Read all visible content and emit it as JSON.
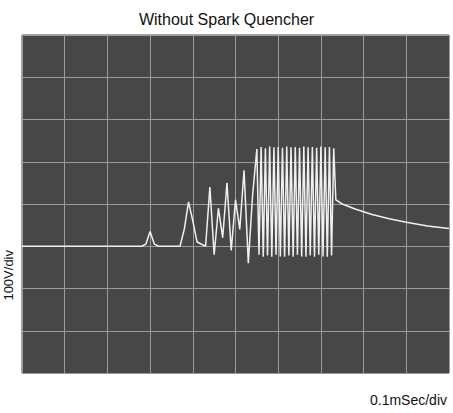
{
  "chart_data": {
    "type": "line",
    "title": "Without Spark Quencher",
    "xlabel": "0.1mSec/div",
    "ylabel": "100V/div",
    "x": [
      0,
      0.1,
      0.2,
      0.28,
      0.29,
      0.3,
      0.31,
      0.32,
      0.37,
      0.38,
      0.39,
      0.4,
      0.41,
      0.43,
      0.44,
      0.45,
      0.46,
      0.47,
      0.48,
      0.49,
      0.5,
      0.51,
      0.52,
      0.53,
      0.54,
      0.55,
      0.555,
      0.56,
      0.565,
      0.57,
      0.575,
      0.58,
      0.585,
      0.59,
      0.595,
      0.6,
      0.605,
      0.61,
      0.615,
      0.62,
      0.625,
      0.63,
      0.635,
      0.64,
      0.645,
      0.65,
      0.655,
      0.66,
      0.665,
      0.67,
      0.675,
      0.68,
      0.685,
      0.69,
      0.695,
      0.7,
      0.705,
      0.71,
      0.715,
      0.72,
      0.725,
      0.73,
      0.735,
      0.75,
      0.78,
      0.82,
      0.86,
      0.9,
      0.95,
      1.0
    ],
    "values": [
      0,
      0,
      0,
      0,
      5,
      35,
      5,
      0,
      0,
      40,
      105,
      60,
      10,
      0,
      140,
      -20,
      90,
      20,
      150,
      -10,
      110,
      40,
      180,
      -40,
      120,
      230,
      -20,
      235,
      -25,
      232,
      -22,
      236,
      -25,
      234,
      -20,
      235,
      -24,
      233,
      -25,
      236,
      -22,
      234,
      -25,
      235,
      -20,
      233,
      -24,
      236,
      -25,
      234,
      -22,
      235,
      -25,
      233,
      -20,
      236,
      -24,
      234,
      -25,
      235,
      -22,
      232,
      110,
      100,
      88,
      75,
      65,
      57,
      48,
      42
    ],
    "color": "#f0f0f0",
    "xlim": [
      0,
      1
    ],
    "ylim": [
      -300,
      500
    ],
    "xticks": [
      0,
      0.1,
      0.2,
      0.3,
      0.4,
      0.5,
      0.6,
      0.7,
      0.8,
      0.9,
      1
    ],
    "yticks": [
      -300,
      -200,
      -100,
      0,
      100,
      200,
      300,
      400,
      500
    ],
    "grid": true,
    "tick_labels": false
  }
}
